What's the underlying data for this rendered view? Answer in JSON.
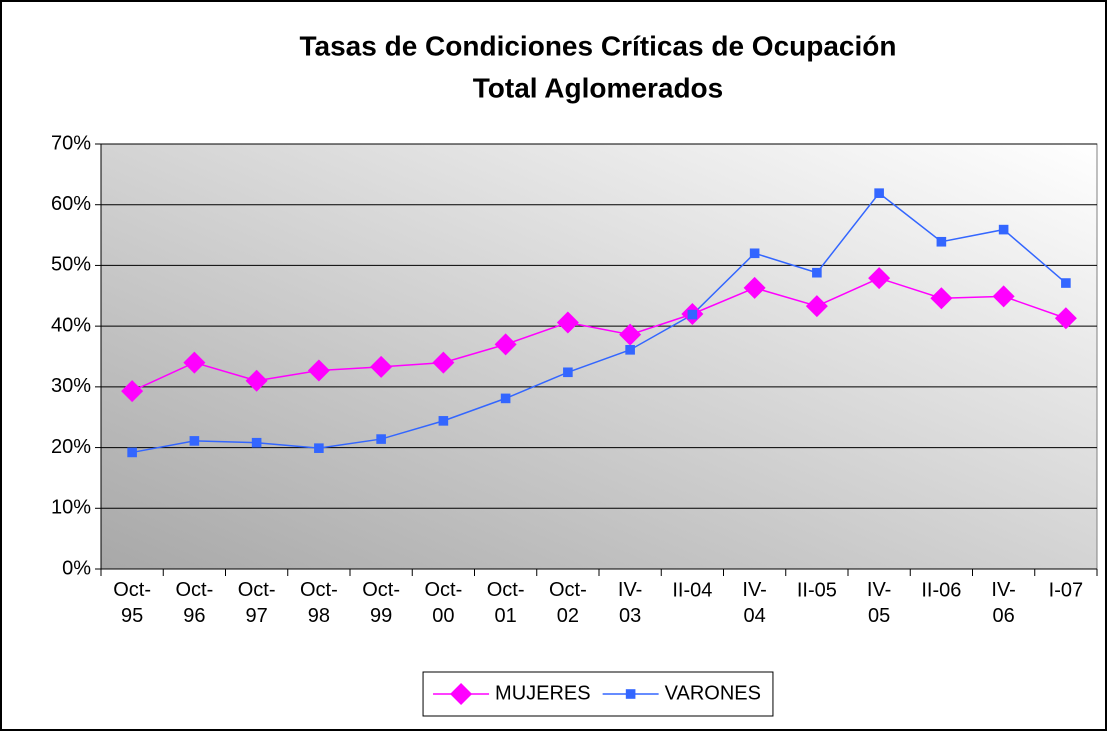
{
  "chart_data": {
    "type": "line",
    "title": [
      "Tasas de Condiciones Críticas de Ocupación",
      "Total Aglomerados"
    ],
    "categories": [
      "Oct-95",
      "Oct-96",
      "Oct-97",
      "Oct-98",
      "Oct-99",
      "Oct-00",
      "Oct-01",
      "Oct-02",
      "IV-03",
      "II-04",
      "IV-04",
      "II-05",
      "IV-05",
      "II-06",
      "IV-06",
      "I-07"
    ],
    "series": [
      {
        "name": "MUJERES",
        "color": "#ff00ff",
        "marker": "diamond",
        "values": [
          29.3,
          34,
          31,
          32.7,
          33.3,
          34,
          37,
          40.6,
          38.6,
          42,
          46.3,
          43.3,
          47.9,
          44.6,
          44.9,
          41.3
        ]
      },
      {
        "name": "VARONES",
        "color": "#3366ff",
        "marker": "square",
        "values": [
          19.2,
          21.1,
          20.8,
          19.9,
          21.4,
          24.4,
          28.1,
          32.4,
          36.1,
          41.9,
          52,
          48.8,
          61.9,
          53.9,
          55.9,
          47.1
        ]
      }
    ],
    "ylim": [
      0,
      70
    ],
    "yticks": [
      {
        "value": 0,
        "label": "0%"
      },
      {
        "value": 10,
        "label": "10%"
      },
      {
        "value": 20,
        "label": "20%"
      },
      {
        "value": 30,
        "label": "30%"
      },
      {
        "value": 40,
        "label": "40%"
      },
      {
        "value": 50,
        "label": "50%"
      },
      {
        "value": 60,
        "label": "60%"
      },
      {
        "value": 70,
        "label": "70%"
      }
    ],
    "grid": true,
    "legend": "bottom"
  }
}
